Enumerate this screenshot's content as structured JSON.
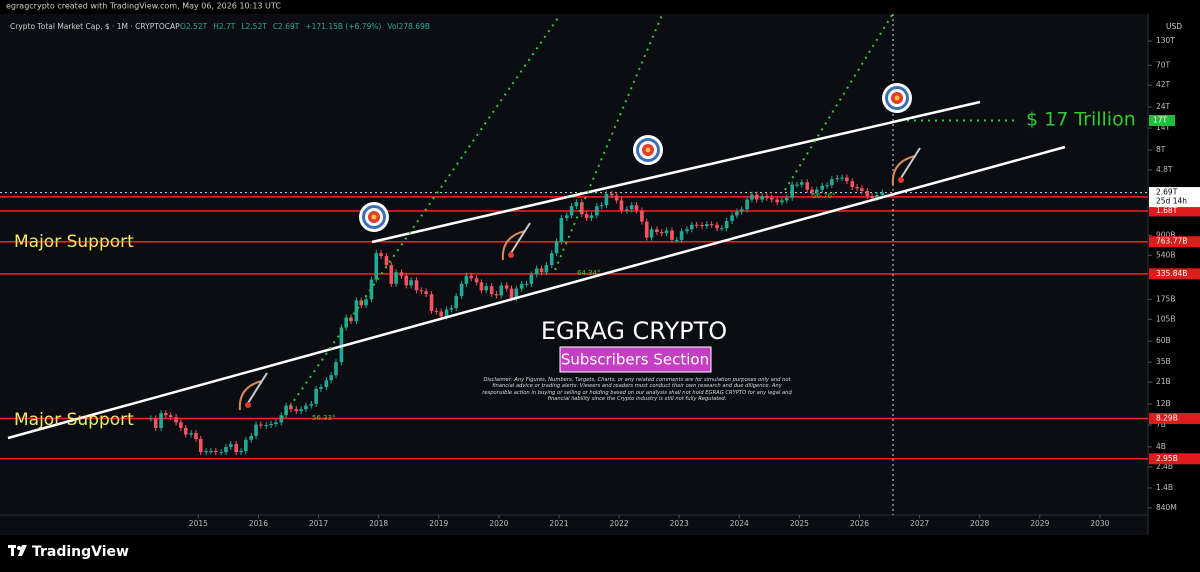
{
  "chart_data": {
    "type": "candlestick",
    "attribution": "egragcrypto created with TradingView.com, May 06, 2026 10:13 UTC",
    "title": "Crypto Total Market Cap, $ · 1M · CRYPTOCAP",
    "legend_values": [
      "O2.52T",
      "H2.7T",
      "L2.52T",
      "C2.69T",
      "+171.15B (+6.79%)",
      "Vol278.69B"
    ],
    "currency": "USD",
    "footer": "TradingView",
    "up_color": "#22ab94",
    "down_color": "#f7525f",
    "log_scale": true,
    "xlim": [
      2011.7,
      2030.8
    ],
    "xticks": [
      2015,
      2016,
      2017,
      2018,
      2019,
      2020,
      2021,
      2022,
      2023,
      2024,
      2025,
      2026,
      2027,
      2028,
      2029,
      2030
    ],
    "ylim": [
      700000000,
      164000000000000
    ],
    "yticks": [
      {
        "value": 840000000,
        "label": "840M"
      },
      {
        "value": 1400000000,
        "label": "1.4B"
      },
      {
        "value": 2400000000,
        "label": "2.4B"
      },
      {
        "value": 4000000000,
        "label": "4B"
      },
      {
        "value": 7000000000,
        "label": "7B"
      },
      {
        "value": 12000000000,
        "label": "12B"
      },
      {
        "value": 21000000000,
        "label": "21B"
      },
      {
        "value": 35000000000,
        "label": "35B"
      },
      {
        "value": 60000000000,
        "label": "60B"
      },
      {
        "value": 105000000000,
        "label": "105B"
      },
      {
        "value": 175000000000,
        "label": "175B"
      },
      {
        "value": 540000000000,
        "label": "540B"
      },
      {
        "value": 900000000000,
        "label": "900B"
      },
      {
        "value": 4800000000000,
        "label": "4.8T"
      },
      {
        "value": 8000000000000,
        "label": "8T"
      },
      {
        "value": 14000000000000,
        "label": "14T"
      },
      {
        "value": 24000000000000,
        "label": "24T"
      },
      {
        "value": 42000000000000,
        "label": "42T"
      },
      {
        "value": 70000000000000,
        "label": "70T"
      },
      {
        "value": 130000000000000,
        "label": "130T"
      }
    ],
    "x": [
      2014.21,
      2014.29,
      2014.38,
      2014.46,
      2014.54,
      2014.63,
      2014.71,
      2014.79,
      2014.88,
      2014.96,
      2015.04,
      2015.13,
      2015.21,
      2015.29,
      2015.38,
      2015.46,
      2015.54,
      2015.63,
      2015.71,
      2015.79,
      2015.88,
      2015.96,
      2016.04,
      2016.13,
      2016.21,
      2016.29,
      2016.38,
      2016.46,
      2016.54,
      2016.63,
      2016.71,
      2016.79,
      2016.88,
      2016.96,
      2017.04,
      2017.13,
      2017.21,
      2017.29,
      2017.38,
      2017.46,
      2017.54,
      2017.63,
      2017.71,
      2017.79,
      2017.88,
      2017.96,
      2018.04,
      2018.13,
      2018.21,
      2018.29,
      2018.38,
      2018.46,
      2018.54,
      2018.63,
      2018.71,
      2018.79,
      2018.88,
      2018.96,
      2019.04,
      2019.13,
      2019.21,
      2019.29,
      2019.38,
      2019.46,
      2019.54,
      2019.63,
      2019.71,
      2019.79,
      2019.88,
      2019.96,
      2020.04,
      2020.13,
      2020.21,
      2020.29,
      2020.38,
      2020.46,
      2020.54,
      2020.63,
      2020.71,
      2020.79,
      2020.88,
      2020.96,
      2021.04,
      2021.13,
      2021.21,
      2021.29,
      2021.38,
      2021.46,
      2021.54,
      2021.63,
      2021.71,
      2021.79,
      2021.88,
      2021.96,
      2022.04,
      2022.13,
      2022.21,
      2022.29,
      2022.38,
      2022.46,
      2022.54,
      2022.63,
      2022.71,
      2022.79,
      2022.88,
      2022.96,
      2023.04,
      2023.13,
      2023.21,
      2023.29,
      2023.38,
      2023.46,
      2023.54,
      2023.63,
      2023.71,
      2023.79,
      2023.88,
      2023.96,
      2024.04,
      2024.13,
      2024.21,
      2024.29,
      2024.38,
      2024.46,
      2024.54,
      2024.63,
      2024.71,
      2024.79,
      2024.88,
      2024.96,
      2025.04,
      2025.13,
      2025.21,
      2025.29,
      2025.38,
      2025.46,
      2025.54,
      2025.63,
      2025.71,
      2025.79,
      2025.88,
      2025.96,
      2026.04,
      2026.13,
      2026.21,
      2026.29,
      2026.38
    ],
    "values": [
      8300000000.0,
      6500000000.0,
      9500000000.0,
      9000000000.0,
      8600000000.0,
      7500000000.0,
      6500000000.0,
      5500000000.0,
      5700000000.0,
      4900000000.0,
      3500000000.0,
      3600000000.0,
      3600000000.0,
      3500000000.0,
      3500000000.0,
      4000000000.0,
      4300000000.0,
      3500000000.0,
      3600000000.0,
      4800000000.0,
      5300000000.0,
      7100000000.0,
      6900000000.0,
      7000000000.0,
      7200000000.0,
      7500000000.0,
      9000000000.0,
      11500000000.0,
      10500000000.0,
      10000000000.0,
      10500000000.0,
      11500000000.0,
      12000000000.0,
      17700000000.0,
      18500000000.0,
      22000000000.0,
      25000000000.0,
      35000000000.0,
      85000000000.0,
      110000000000.0,
      100000000000.0,
      170000000000.0,
      150000000000.0,
      175000000000.0,
      290000000000.0,
      570000000000.0,
      530000000000.0,
      420000000000.0,
      260000000000.0,
      350000000000.0,
      320000000000.0,
      250000000000.0,
      285000000000.0,
      220000000000.0,
      215000000000.0,
      200000000000.0,
      130000000000.0,
      128000000000.0,
      113000000000.0,
      135000000000.0,
      140000000000.0,
      190000000000.0,
      260000000000.0,
      320000000000.0,
      300000000000.0,
      270000000000.0,
      220000000000.0,
      245000000000.0,
      200000000000.0,
      193000000000.0,
      250000000000.0,
      230000000000.0,
      180000000000.0,
      230000000000.0,
      260000000000.0,
      260000000000.0,
      330000000000.0,
      385000000000.0,
      350000000000.0,
      420000000000.0,
      570000000000.0,
      770000000000.0,
      1400000000000.0,
      1500000000000.0,
      1900000000000.0,
      2100000000000.0,
      1550000000000.0,
      1400000000000.0,
      1500000000000.0,
      1900000000000.0,
      1950000000000.0,
      2600000000000.0,
      2500000000000.0,
      2200000000000.0,
      1700000000000.0,
      1750000000000.0,
      1950000000000.0,
      1700000000000.0,
      1280000000000.0,
      850000000000.0,
      1050000000000.0,
      980000000000.0,
      950000000000.0,
      1020000000000.0,
      800000000000.0,
      800000000000.0,
      1000000000000.0,
      1050000000000.0,
      1180000000000.0,
      1170000000000.0,
      1140000000000.0,
      1200000000000.0,
      1180000000000.0,
      1080000000000.0,
      1080000000000.0,
      1300000000000.0,
      1500000000000.0,
      1650000000000.0,
      1750000000000.0,
      2250000000000.0,
      2550000000000.0,
      2250000000000.0,
      2450000000000.0,
      2350000000000.0,
      2250000000000.0,
      2100000000000.0,
      2200000000000.0,
      2350000000000.0,
      3300000000000.0,
      3300000000000.0,
      3500000000000.0,
      2900000000000.0,
      2700000000000.0,
      2900000000000.0,
      3200000000000.0,
      3250000000000.0,
      3800000000000.0,
      3900000000000.0,
      3950000000000.0,
      3600000000000.0,
      3100000000000.0,
      3000000000000.0,
      2800000000000.0,
      2450000000000.0,
      2350000000000.0,
      2520000000000.0,
      2690000000000.0
    ],
    "support_levels": [
      {
        "value": 2410000000000,
        "label": "2.41T"
      },
      {
        "value": 1680000000000,
        "label": "1.68T"
      },
      {
        "value": 763770000000,
        "label": "763.77B"
      },
      {
        "value": 335840000000,
        "label": "335.84B"
      },
      {
        "value": 8290000000,
        "label": "8.29B"
      },
      {
        "value": 2950000000,
        "label": "2.95B"
      }
    ],
    "current_price": {
      "value": 2690000000000,
      "label": "2.69T",
      "countdown": "25d 14h"
    },
    "target": {
      "value": 17000000000000,
      "label": "17T",
      "annotation": "$ 17 Trillion"
    },
    "support_annotations": [
      "Major Support",
      "Major Support"
    ],
    "angle_labels": [
      "56.33°",
      "64.34°",
      "56.76°"
    ],
    "banner_title": "EGRAG CRYPTO",
    "banner_subtitle": "Subscribers Section",
    "disclaimer": "Disclaimer: Any Figures, Numbers, Targets, Charts, or any related comments are for simulation purposes only and not financial advice or trading alerts. Viewers and readers must conduct their own research and due diligence. Any responsible action in buying or selling or holding based on our analysis shall not hold EGRAG CRYPTO for any legal and financial liability since the Crypto industry is still not fully Regulated."
  }
}
